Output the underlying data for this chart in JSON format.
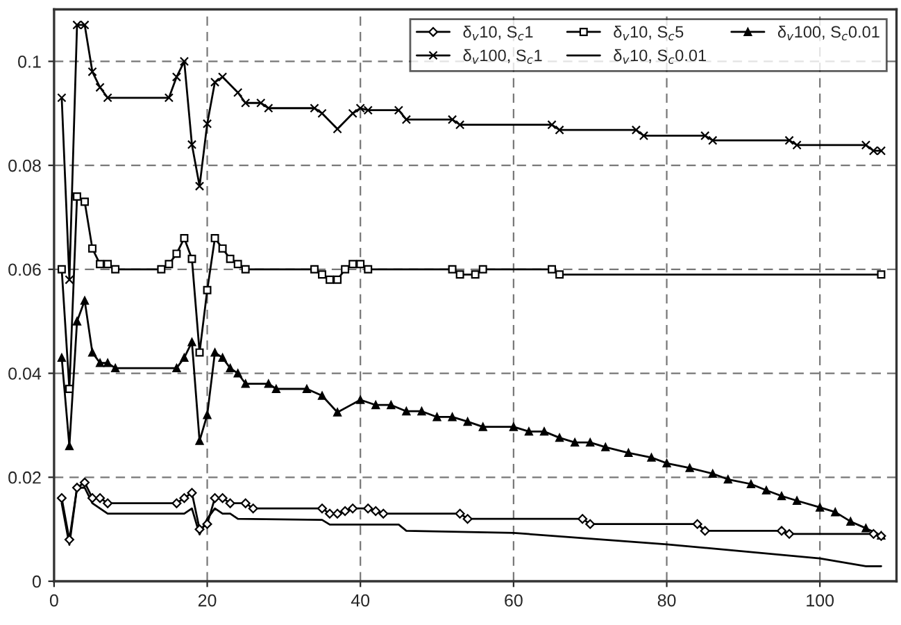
{
  "chart_data": {
    "type": "line",
    "xlim": [
      0,
      110
    ],
    "ylim": [
      0,
      0.11
    ],
    "xticks": [
      0,
      20,
      40,
      60,
      80,
      100
    ],
    "yticks": [
      0,
      0.02,
      0.04,
      0.06,
      0.08,
      0.1
    ],
    "grid": true,
    "legend": "top right",
    "line_style": "solid",
    "series": [
      {
        "name": "δ$_{v}$10, S$_{c}$1",
        "color": "#000000",
        "marker": "diamond",
        "x": [
          1,
          2,
          3,
          4,
          5,
          6,
          7,
          16,
          17,
          18,
          19,
          20,
          21,
          22,
          23,
          25,
          26,
          35,
          36,
          37,
          38,
          39,
          41,
          42,
          43,
          53,
          54,
          69,
          70,
          84,
          85,
          95,
          96,
          107,
          108
        ],
        "values": [
          0.016,
          0.008,
          0.018,
          0.019,
          0.016,
          0.016,
          0.015,
          0.015,
          0.016,
          0.017,
          0.01,
          0.011,
          0.016,
          0.016,
          0.015,
          0.015,
          0.014,
          0.014,
          0.013,
          0.013,
          0.0135,
          0.014,
          0.014,
          0.0135,
          0.013,
          0.013,
          0.012,
          0.012,
          0.011,
          0.011,
          0.0097,
          0.0097,
          0.0091,
          0.0091,
          0.0087
        ]
      },
      {
        "name": "δ$_{v}$10, S$_{c}$5",
        "color": "#000000",
        "marker": "square",
        "x": [
          1,
          2,
          3,
          4,
          5,
          6,
          7,
          8,
          14,
          15,
          16,
          17,
          18,
          19,
          20,
          21,
          22,
          23,
          24,
          25,
          34,
          35,
          36,
          37,
          38,
          39,
          40,
          41,
          52,
          53,
          55,
          56,
          65,
          66,
          108
        ],
        "values": [
          0.06,
          0.037,
          0.074,
          0.073,
          0.064,
          0.061,
          0.061,
          0.06,
          0.06,
          0.061,
          0.063,
          0.066,
          0.062,
          0.044,
          0.056,
          0.066,
          0.064,
          0.062,
          0.061,
          0.06,
          0.06,
          0.059,
          0.058,
          0.058,
          0.06,
          0.061,
          0.061,
          0.06,
          0.06,
          0.059,
          0.059,
          0.06,
          0.06,
          0.059,
          0.059
        ]
      },
      {
        "name": "δ$_{v}$100, S$_{c}$0.01",
        "color": "#000000",
        "marker": "triangle",
        "x": [
          1,
          2,
          3,
          4,
          5,
          6,
          7,
          8,
          16,
          17,
          18,
          19,
          20,
          21,
          22,
          23,
          24,
          25,
          28,
          29,
          33,
          35,
          37,
          40,
          42,
          44,
          46,
          48,
          50,
          52,
          54,
          56,
          60,
          62,
          64,
          66,
          68,
          70,
          72,
          75,
          78,
          80,
          83,
          86,
          88,
          91,
          93,
          95,
          97,
          100,
          102,
          104,
          106,
          108
        ],
        "values": [
          0.043,
          0.026,
          0.05,
          0.054,
          0.044,
          0.042,
          0.042,
          0.041,
          0.041,
          0.043,
          0.046,
          0.027,
          0.032,
          0.044,
          0.043,
          0.041,
          0.04,
          0.038,
          0.038,
          0.037,
          0.037,
          0.0357,
          0.0325,
          0.0349,
          0.0339,
          0.0339,
          0.0327,
          0.0327,
          0.0316,
          0.0316,
          0.0307,
          0.0297,
          0.0297,
          0.0288,
          0.0288,
          0.0276,
          0.0267,
          0.0267,
          0.0258,
          0.0247,
          0.0238,
          0.0227,
          0.0218,
          0.0207,
          0.0196,
          0.0187,
          0.0175,
          0.0164,
          0.0155,
          0.0142,
          0.0133,
          0.0115,
          0.0102,
          0.0088
        ]
      },
      {
        "name": "δ$_{v}$100, S$_{c}$1",
        "color": "#000000",
        "marker": "cross",
        "x": [
          1,
          2,
          3,
          4,
          5,
          6,
          7,
          15,
          16,
          17,
          18,
          19,
          20,
          21,
          22,
          24,
          25,
          27,
          28,
          34,
          35,
          37,
          39,
          40,
          41,
          45,
          46,
          52,
          53,
          65,
          66,
          76,
          77,
          85,
          86,
          96,
          97,
          106,
          107,
          108
        ],
        "values": [
          0.093,
          0.058,
          0.107,
          0.107,
          0.098,
          0.095,
          0.093,
          0.093,
          0.097,
          0.1,
          0.084,
          0.076,
          0.088,
          0.096,
          0.097,
          0.094,
          0.092,
          0.092,
          0.091,
          0.091,
          0.09,
          0.087,
          0.09,
          0.091,
          0.0906,
          0.0906,
          0.0888,
          0.0888,
          0.0878,
          0.0878,
          0.0868,
          0.0868,
          0.0857,
          0.0857,
          0.0848,
          0.0848,
          0.0839,
          0.0839,
          0.0828,
          0.0828
        ]
      },
      {
        "name": "δ$_{v}$10, S$_{c}$0.01",
        "color": "#000000",
        "marker": "none",
        "x": [
          1,
          2,
          3,
          4,
          5,
          6,
          7,
          16,
          17,
          18,
          19,
          20,
          21,
          22,
          23,
          24,
          35,
          36,
          45,
          46,
          60,
          80,
          100,
          106,
          108
        ],
        "values": [
          0.015,
          0.007,
          0.018,
          0.018,
          0.015,
          0.014,
          0.013,
          0.013,
          0.013,
          0.014,
          0.009,
          0.012,
          0.014,
          0.013,
          0.013,
          0.012,
          0.0118,
          0.0109,
          0.0109,
          0.0097,
          0.0093,
          0.0071,
          0.0044,
          0.0029,
          0.0029
        ]
      }
    ]
  }
}
